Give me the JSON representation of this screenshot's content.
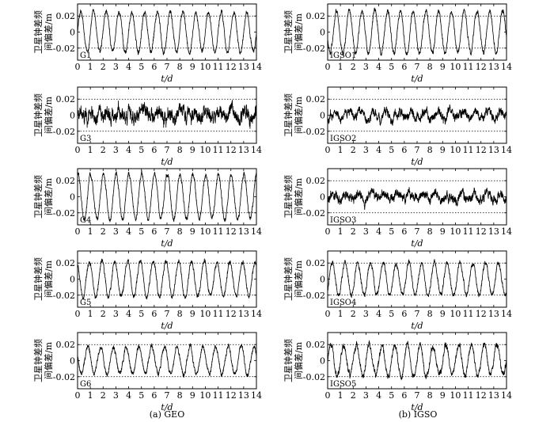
{
  "chart_data": [
    {
      "type": "line",
      "id": "G1",
      "label": "G1",
      "amplitude": 0.025,
      "period_days": 1,
      "noise": 0.003,
      "xlabel": "t/d",
      "ylabel": [
        "卫星钟差频",
        "间偏差/m"
      ],
      "xlim": [
        0,
        14
      ],
      "ylim": [
        -0.035,
        0.035
      ],
      "xticks": [
        0,
        1,
        2,
        3,
        4,
        5,
        6,
        7,
        8,
        9,
        10,
        11,
        12,
        13,
        14
      ],
      "yticks": [
        0.02,
        0,
        -0.02
      ],
      "ytick_labels": [
        "0.02",
        "0",
        "-0.02"
      ],
      "ref_lines": [
        0.02,
        -0.02
      ]
    },
    {
      "type": "line",
      "id": "G3",
      "label": "G3",
      "amplitude": 0.004,
      "period_days": 1,
      "noise": 0.009,
      "xlabel": "t/d",
      "ylabel": [
        "卫星钟差频",
        "间偏差/m"
      ],
      "xlim": [
        0,
        14
      ],
      "ylim": [
        -0.035,
        0.035
      ],
      "xticks": [
        0,
        1,
        2,
        3,
        4,
        5,
        6,
        7,
        8,
        9,
        10,
        11,
        12,
        13,
        14
      ],
      "yticks": [
        0.02,
        0,
        -0.02
      ],
      "ytick_labels": [
        "0.02",
        "0",
        "-0.02"
      ],
      "ref_lines": [
        0.02,
        -0.02
      ]
    },
    {
      "type": "line",
      "id": "G4",
      "label": "G4",
      "amplitude": 0.028,
      "period_days": 1,
      "noise": 0.003,
      "xlabel": "t/d",
      "ylabel": [
        "卫星钟差频",
        "间偏差/m"
      ],
      "xlim": [
        0,
        14
      ],
      "ylim": [
        -0.035,
        0.035
      ],
      "xticks": [
        0,
        1,
        2,
        3,
        4,
        5,
        6,
        7,
        8,
        9,
        10,
        11,
        12,
        13,
        14
      ],
      "yticks": [
        0.02,
        0,
        -0.02
      ],
      "ytick_labels": [
        "0.02",
        "0",
        "-0.02"
      ],
      "ref_lines": [
        0.02,
        -0.02
      ]
    },
    {
      "type": "line",
      "id": "G5",
      "label": "G5",
      "amplitude": 0.022,
      "period_days": 1,
      "noise": 0.003,
      "xlabel": "t/d",
      "ylabel": [
        "卫星钟差频",
        "间偏差/m"
      ],
      "xlim": [
        0,
        14
      ],
      "ylim": [
        -0.035,
        0.035
      ],
      "xticks": [
        0,
        1,
        2,
        3,
        4,
        5,
        6,
        7,
        8,
        9,
        10,
        11,
        12,
        13,
        14
      ],
      "yticks": [
        0.02,
        0,
        -0.02
      ],
      "ytick_labels": [
        "0.02",
        "0",
        "-0.02"
      ],
      "ref_lines": [
        0.02,
        -0.02
      ]
    },
    {
      "type": "line",
      "id": "G6",
      "label": "G6",
      "amplitude": 0.017,
      "period_days": 1,
      "noise": 0.003,
      "xlabel": "t/d",
      "ylabel": [
        "卫星钟差频",
        "间偏差/m"
      ],
      "xlim": [
        0,
        14
      ],
      "ylim": [
        -0.035,
        0.035
      ],
      "xticks": [
        0,
        1,
        2,
        3,
        4,
        5,
        6,
        7,
        8,
        9,
        10,
        11,
        12,
        13,
        14
      ],
      "yticks": [
        0.02,
        0,
        -0.02
      ],
      "ytick_labels": [
        "0.02",
        "0",
        "-0.02"
      ],
      "ref_lines": [
        0.02,
        -0.02
      ]
    },
    {
      "type": "line",
      "id": "IGSO1",
      "label": "IGSO1",
      "amplitude": 0.026,
      "period_days": 1,
      "noise": 0.003,
      "xlabel": "t/d",
      "ylabel": [
        "卫星钟差频",
        "间偏差/m"
      ],
      "xlim": [
        0,
        14
      ],
      "ylim": [
        -0.035,
        0.035
      ],
      "xticks": [
        0,
        1,
        2,
        3,
        4,
        5,
        6,
        7,
        8,
        9,
        10,
        11,
        12,
        13,
        14
      ],
      "yticks": [
        0.02,
        0,
        -0.02
      ],
      "ytick_labels": [
        "0.02",
        "0",
        "-0.02"
      ],
      "ref_lines": [
        0.02,
        -0.02
      ]
    },
    {
      "type": "line",
      "id": "IGSO2",
      "label": "IGSO2",
      "amplitude": 0.005,
      "period_days": 1,
      "noise": 0.006,
      "xlabel": "t/d",
      "ylabel": [
        "卫星钟差频",
        "间偏差/m"
      ],
      "xlim": [
        0,
        14
      ],
      "ylim": [
        -0.035,
        0.035
      ],
      "xticks": [
        0,
        1,
        2,
        3,
        4,
        5,
        6,
        7,
        8,
        9,
        10,
        11,
        12,
        13,
        14
      ],
      "yticks": [
        0.02,
        0,
        -0.02
      ],
      "ytick_labels": [
        "0.02",
        "0",
        "-0.02"
      ],
      "ref_lines": [
        0.02,
        -0.02
      ]
    },
    {
      "type": "line",
      "id": "IGSO3",
      "label": "IGSO3",
      "amplitude": 0.004,
      "period_days": 1,
      "noise": 0.006,
      "xlabel": "t/d",
      "ylabel": [
        "卫星钟差频",
        "间偏差/m"
      ],
      "xlim": [
        0,
        14
      ],
      "ylim": [
        -0.035,
        0.035
      ],
      "xticks": [
        0,
        1,
        2,
        3,
        4,
        5,
        6,
        7,
        8,
        9,
        10,
        11,
        12,
        13,
        14
      ],
      "yticks": [
        0.02,
        0,
        -0.02
      ],
      "ytick_labels": [
        "0.02",
        "0",
        "-0.02"
      ],
      "ref_lines": [
        0.02,
        -0.02
      ]
    },
    {
      "type": "line",
      "id": "IGSO4",
      "label": "IGSO4",
      "amplitude": 0.02,
      "period_days": 1,
      "noise": 0.003,
      "xlabel": "t/d",
      "ylabel": [
        "卫星钟差频",
        "间偏差/m"
      ],
      "xlim": [
        0,
        14
      ],
      "ylim": [
        -0.035,
        0.035
      ],
      "xticks": [
        0,
        1,
        2,
        3,
        4,
        5,
        6,
        7,
        8,
        9,
        10,
        11,
        12,
        13,
        14
      ],
      "yticks": [
        0.02,
        0,
        -0.02
      ],
      "ytick_labels": [
        "0.02",
        "0",
        "-0.02"
      ],
      "ref_lines": [
        0.02,
        -0.02
      ]
    },
    {
      "type": "line",
      "id": "IGSO5",
      "label": "IGSO5",
      "amplitude": 0.019,
      "period_days": 1,
      "noise": 0.004,
      "xlabel": "t/d",
      "ylabel": [
        "卫星钟差频",
        "间偏差/m"
      ],
      "xlim": [
        0,
        14
      ],
      "ylim": [
        -0.035,
        0.035
      ],
      "xticks": [
        0,
        1,
        2,
        3,
        4,
        5,
        6,
        7,
        8,
        9,
        10,
        11,
        12,
        13,
        14
      ],
      "yticks": [
        0.02,
        0,
        -0.02
      ],
      "ytick_labels": [
        "0.02",
        "0",
        "-0.02"
      ],
      "ref_lines": [
        0.02,
        -0.02
      ]
    }
  ],
  "captions": {
    "left": "(a) GEO",
    "right": "(b) IGSO"
  },
  "colors": {
    "line": "#000000",
    "ref_line": "#000000",
    "background": "#ffffff"
  }
}
